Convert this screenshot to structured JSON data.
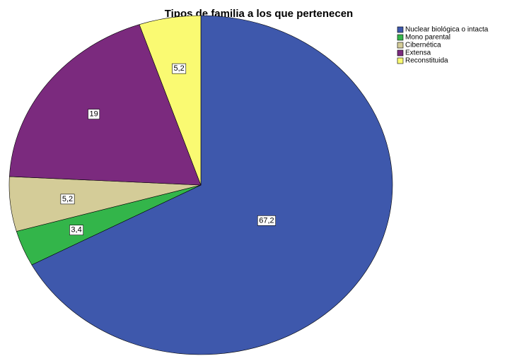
{
  "chart_data": {
    "type": "pie",
    "title": "Tipos de familia a los que pertenecen",
    "categories": [
      "Nuclear biológica o intacta",
      "Mono parental",
      "Cibernética",
      "Extensa",
      "Reconstituida"
    ],
    "values": [
      67.2,
      3.4,
      5.2,
      19,
      5.2
    ],
    "value_labels": [
      "67,2",
      "3,4",
      "5,2",
      "19",
      "5,2"
    ],
    "colors": [
      "#3e58ac",
      "#33b54a",
      "#d4cc98",
      "#7b2a7e",
      "#fafa72"
    ],
    "legend": "top-right"
  }
}
